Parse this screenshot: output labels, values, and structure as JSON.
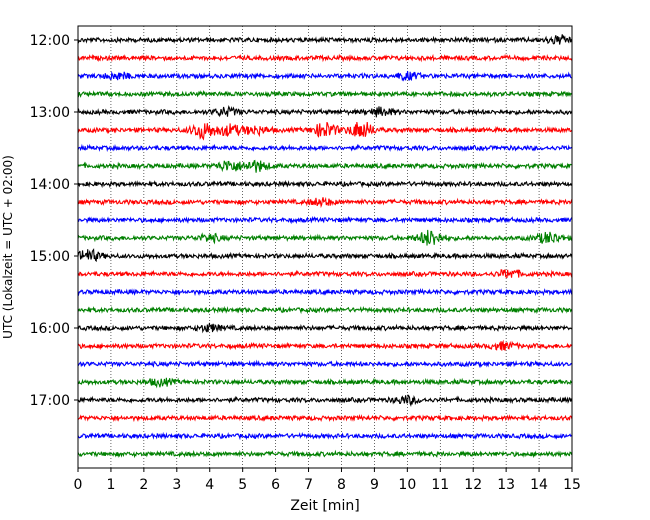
{
  "chart_data": {
    "type": "line",
    "title": "",
    "xlabel": "Zeit  [min]",
    "ylabel": "UTC (Lokalzeit = UTC + 02:00)",
    "xlim": [
      0,
      15
    ],
    "x_ticks": [
      0,
      1,
      2,
      3,
      4,
      5,
      6,
      7,
      8,
      9,
      10,
      11,
      12,
      13,
      14,
      15
    ],
    "x_tick_labels": [
      "0",
      "1",
      "2",
      "3",
      "4",
      "5",
      "6",
      "7",
      "8",
      "9",
      "10",
      "11",
      "12",
      "13",
      "14",
      "15"
    ],
    "y_ticks": [
      "12:00",
      "13:00",
      "14:00",
      "15:00",
      "16:00",
      "17:00"
    ],
    "grid": "vertical dotted",
    "trace_colors": [
      "#000000",
      "#ff0000",
      "#0000ff",
      "#008000"
    ],
    "traces": [
      {
        "start": "12:00",
        "bursts": [
          {
            "x": 14.6,
            "amp": 1.2
          }
        ]
      },
      {
        "start": "12:15",
        "bursts": []
      },
      {
        "start": "12:30",
        "bursts": [
          {
            "x": 1.2,
            "amp": 1.0
          },
          {
            "x": 10.0,
            "amp": 1.0
          }
        ]
      },
      {
        "start": "12:45",
        "bursts": []
      },
      {
        "start": "13:00",
        "bursts": [
          {
            "x": 4.5,
            "amp": 1.2
          },
          {
            "x": 9.2,
            "amp": 1.2
          }
        ]
      },
      {
        "start": "13:15",
        "bursts": [
          {
            "x": 3.8,
            "amp": 2.5
          },
          {
            "x": 4.6,
            "amp": 1.6
          },
          {
            "x": 5.4,
            "amp": 1.2
          },
          {
            "x": 7.5,
            "amp": 2.2
          },
          {
            "x": 8.6,
            "amp": 2.6
          }
        ]
      },
      {
        "start": "13:30",
        "bursts": []
      },
      {
        "start": "13:45",
        "bursts": [
          {
            "x": 4.6,
            "amp": 1.6
          },
          {
            "x": 5.4,
            "amp": 1.6
          }
        ]
      },
      {
        "start": "14:00",
        "bursts": []
      },
      {
        "start": "14:15",
        "bursts": [
          {
            "x": 7.4,
            "amp": 1.0
          }
        ]
      },
      {
        "start": "14:30",
        "bursts": []
      },
      {
        "start": "14:45",
        "bursts": [
          {
            "x": 4.0,
            "amp": 1.0
          },
          {
            "x": 10.7,
            "amp": 2.4
          },
          {
            "x": 14.3,
            "amp": 1.6
          }
        ]
      },
      {
        "start": "15:00",
        "bursts": [
          {
            "x": 0.3,
            "amp": 1.8
          }
        ]
      },
      {
        "start": "15:15",
        "bursts": [
          {
            "x": 13.1,
            "amp": 1.2
          }
        ]
      },
      {
        "start": "15:30",
        "bursts": []
      },
      {
        "start": "15:45",
        "bursts": []
      },
      {
        "start": "16:00",
        "bursts": [
          {
            "x": 4.0,
            "amp": 1.0
          }
        ]
      },
      {
        "start": "16:15",
        "bursts": [
          {
            "x": 12.9,
            "amp": 1.0
          }
        ]
      },
      {
        "start": "16:30",
        "bursts": []
      },
      {
        "start": "16:45",
        "bursts": [
          {
            "x": 2.5,
            "amp": 1.0
          }
        ]
      },
      {
        "start": "17:00",
        "bursts": [
          {
            "x": 10.0,
            "amp": 1.1
          }
        ]
      },
      {
        "start": "17:15",
        "bursts": []
      },
      {
        "start": "17:30",
        "bursts": []
      },
      {
        "start": "17:45",
        "bursts": []
      }
    ]
  }
}
